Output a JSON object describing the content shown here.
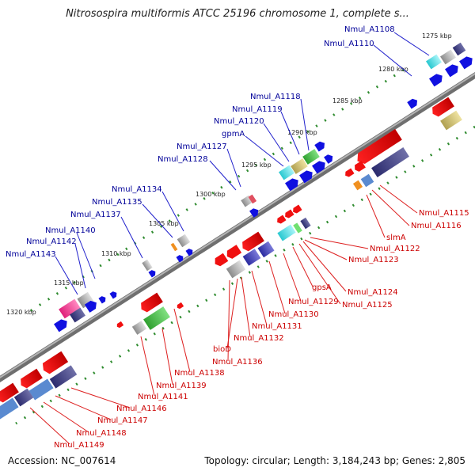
{
  "title": "Nitrosospira multiformis ATCC 25196 chromosome 1, complete s...",
  "footer": {
    "accession": "Accession: NC_007614",
    "summary": "Topology: circular; Length: 3,184,243 bp; Genes: 2,805"
  },
  "colors": {
    "backbone": "#808080",
    "forward_label": "#000099",
    "reverse_label": "#cc0000",
    "tick": "#2e8b2e"
  },
  "kbp_ticks": [
    "1275 kbp",
    "1280 kbp",
    "1285 kbp",
    "1290 kbp",
    "1295 kbp",
    "1300 kbp",
    "1305 kbp",
    "1310 kbp",
    "1315 kbp",
    "1320 kbp"
  ],
  "upper_labels": [
    "Nmul_A1108",
    "Nmul_A1110",
    "Nmul_A1118",
    "Nmul_A1119",
    "Nmul_A1120",
    "gpmA",
    "Nmul_A1127",
    "Nmul_A1128",
    "Nmul_A1134",
    "Nmul_A1135",
    "Nmul_A1137",
    "Nmul_A1140",
    "Nmul_A1142",
    "Nmul_A1143"
  ],
  "lower_labels": [
    "Nmul_A1115",
    "Nmul_A1116",
    "slmA",
    "Nmul_A1122",
    "Nmul_A1123",
    "Nmul_A1124",
    "Nmul_A1125",
    "gpsA",
    "Nmul_A1129",
    "Nmul_A1130",
    "Nmul_A1131",
    "Nmul_A1132",
    "bioD",
    "Nmul_A1136",
    "Nmul_A1138",
    "Nmul_A1139",
    "Nmul_A1141",
    "Nmul_A1146",
    "Nmul_A1147",
    "Nmul_A1148",
    "Nmul_A1149"
  ]
}
